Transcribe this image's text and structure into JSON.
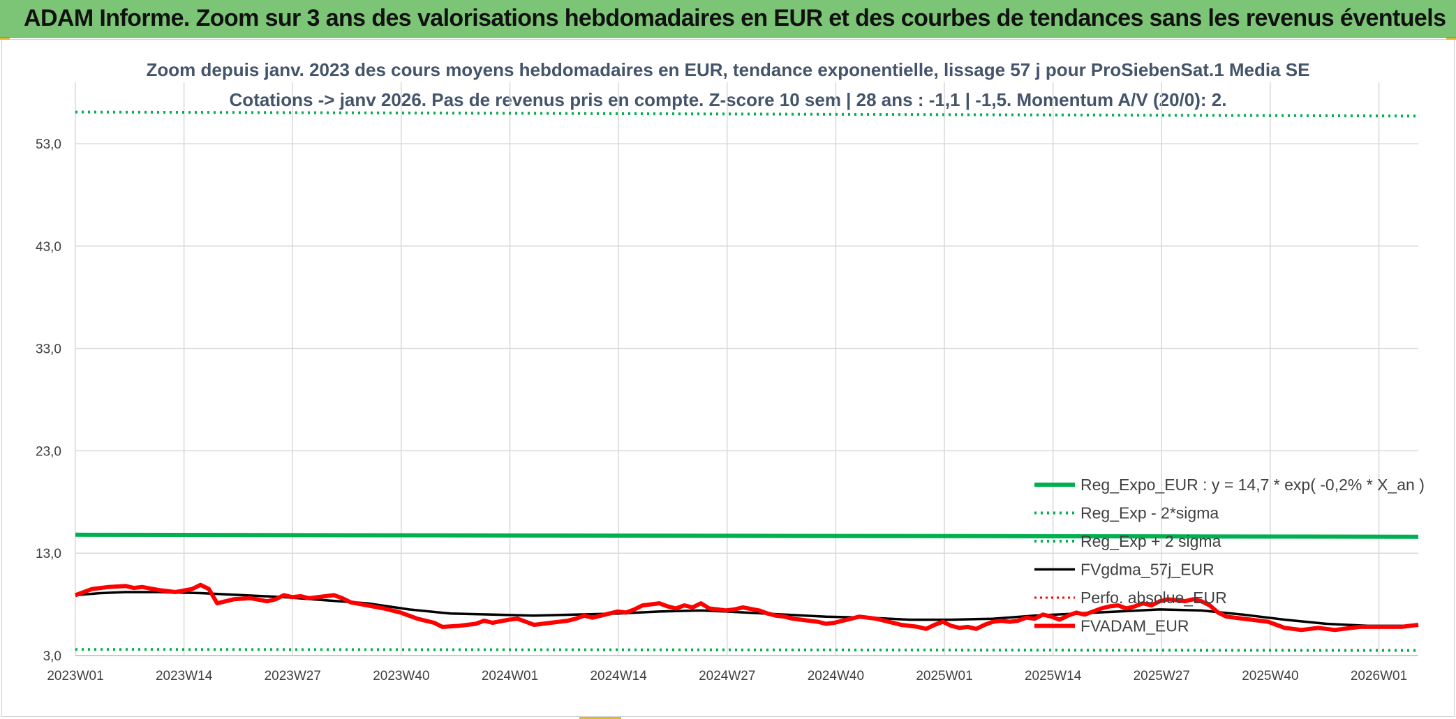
{
  "header": {
    "title": "ADAM Informe. Zoom sur 3 ans des valorisations hebdomadaires en EUR et des courbes de tendances sans les revenus éventuels"
  },
  "colors": {
    "banner": "#7cc576",
    "reg_expo": "#00b050",
    "sigma": "#00b050",
    "fvgdma": "#000000",
    "perfo": "#ff0000",
    "fvadam": "#ff0000",
    "grid": "#d9d9d9"
  },
  "chart_data": {
    "type": "line",
    "title": "Zoom depuis janv. 2023 des cours moyens hebdomadaires en EUR, tendance exponentielle, lissage 57 j pour ProSiebenSat.1 Media SE",
    "subtitle": "Cotations -> janv 2026. Pas de revenus pris en compte. Z-score 10 sem | 28 ans : -1,1 | -1,5. Momentum A/V (20/0): 2.",
    "x_tick_labels": [
      "2023W01",
      "2023W14",
      "2023W27",
      "2023W40",
      "2024W01",
      "2024W14",
      "2024W27",
      "2024W40",
      "2025W01",
      "2025W14",
      "2025W27",
      "2025W40",
      "2026W01"
    ],
    "x_range_weeks": [
      0,
      161
    ],
    "y_tick_labels": [
      "3,0",
      "13,0",
      "23,0",
      "33,0",
      "43,0",
      "53,0"
    ],
    "ylim": [
      3.0,
      59.0
    ],
    "grid": true,
    "legend_position": "right",
    "series": [
      {
        "name": "Reg_Expo_EUR : y = 14,7 * exp( -0,2% *  X_an )",
        "style": "solid-thick",
        "points": [
          [
            0,
            14.8
          ],
          [
            78,
            14.7
          ],
          [
            161,
            14.6
          ]
        ]
      },
      {
        "name": "Reg_Exp - 2*sigma",
        "style": "dotted",
        "points": [
          [
            0,
            3.6
          ],
          [
            161,
            3.5
          ]
        ]
      },
      {
        "name": "Reg_Exp + 2 sigma",
        "style": "dotted",
        "points": [
          [
            0,
            56.1
          ],
          [
            161,
            55.7
          ]
        ]
      },
      {
        "name": "FVgdma_57j_EUR",
        "style": "solid",
        "points": [
          [
            0,
            8.9
          ],
          [
            3,
            9.1
          ],
          [
            6,
            9.2
          ],
          [
            10,
            9.2
          ],
          [
            15,
            9.1
          ],
          [
            20,
            8.9
          ],
          [
            25,
            8.7
          ],
          [
            30,
            8.4
          ],
          [
            35,
            8.1
          ],
          [
            40,
            7.5
          ],
          [
            45,
            7.1
          ],
          [
            50,
            7.0
          ],
          [
            55,
            6.9
          ],
          [
            60,
            7.0
          ],
          [
            65,
            7.1
          ],
          [
            70,
            7.3
          ],
          [
            75,
            7.4
          ],
          [
            78,
            7.3
          ],
          [
            85,
            7.0
          ],
          [
            90,
            6.8
          ],
          [
            95,
            6.7
          ],
          [
            100,
            6.5
          ],
          [
            105,
            6.5
          ],
          [
            110,
            6.6
          ],
          [
            115,
            6.9
          ],
          [
            120,
            7.1
          ],
          [
            125,
            7.3
          ],
          [
            130,
            7.5
          ],
          [
            135,
            7.4
          ],
          [
            140,
            7.0
          ],
          [
            145,
            6.5
          ],
          [
            150,
            6.1
          ],
          [
            155,
            5.9
          ],
          [
            161,
            5.9
          ]
        ]
      },
      {
        "name": "Perfo. absolue_EUR",
        "style": "dotted",
        "points": []
      },
      {
        "name": "FVADAM_EUR",
        "style": "solid-thick",
        "points": [
          [
            0,
            8.9
          ],
          [
            2,
            9.5
          ],
          [
            4,
            9.7
          ],
          [
            6,
            9.8
          ],
          [
            7,
            9.6
          ],
          [
            8,
            9.7
          ],
          [
            10,
            9.4
          ],
          [
            12,
            9.2
          ],
          [
            14,
            9.5
          ],
          [
            15,
            9.9
          ],
          [
            16,
            9.5
          ],
          [
            17,
            8.1
          ],
          [
            19,
            8.5
          ],
          [
            21,
            8.6
          ],
          [
            23,
            8.3
          ],
          [
            24,
            8.5
          ],
          [
            25,
            8.9
          ],
          [
            26,
            8.7
          ],
          [
            27,
            8.8
          ],
          [
            28,
            8.6
          ],
          [
            29,
            8.7
          ],
          [
            30,
            8.8
          ],
          [
            31,
            8.9
          ],
          [
            32,
            8.6
          ],
          [
            33,
            8.2
          ],
          [
            35,
            7.9
          ],
          [
            37,
            7.6
          ],
          [
            39,
            7.2
          ],
          [
            41,
            6.6
          ],
          [
            43,
            6.2
          ],
          [
            44,
            5.8
          ],
          [
            46,
            5.9
          ],
          [
            48,
            6.1
          ],
          [
            49,
            6.4
          ],
          [
            50,
            6.2
          ],
          [
            52,
            6.5
          ],
          [
            53,
            6.6
          ],
          [
            54,
            6.3
          ],
          [
            55,
            6.0
          ],
          [
            57,
            6.2
          ],
          [
            59,
            6.4
          ],
          [
            60,
            6.6
          ],
          [
            61,
            6.9
          ],
          [
            62,
            6.7
          ],
          [
            63,
            6.9
          ],
          [
            64,
            7.1
          ],
          [
            65,
            7.3
          ],
          [
            66,
            7.2
          ],
          [
            67,
            7.5
          ],
          [
            68,
            7.9
          ],
          [
            69,
            8.0
          ],
          [
            70,
            8.1
          ],
          [
            71,
            7.8
          ],
          [
            72,
            7.6
          ],
          [
            73,
            7.9
          ],
          [
            74,
            7.7
          ],
          [
            75,
            8.1
          ],
          [
            76,
            7.6
          ],
          [
            77,
            7.5
          ],
          [
            78,
            7.4
          ],
          [
            79,
            7.5
          ],
          [
            80,
            7.7
          ],
          [
            82,
            7.4
          ],
          [
            83,
            7.1
          ],
          [
            84,
            6.9
          ],
          [
            85,
            6.8
          ],
          [
            86,
            6.6
          ],
          [
            87,
            6.5
          ],
          [
            88,
            6.4
          ],
          [
            89,
            6.3
          ],
          [
            90,
            6.1
          ],
          [
            91,
            6.2
          ],
          [
            92,
            6.4
          ],
          [
            93,
            6.6
          ],
          [
            94,
            6.8
          ],
          [
            95,
            6.7
          ],
          [
            96,
            6.6
          ],
          [
            97,
            6.4
          ],
          [
            98,
            6.2
          ],
          [
            99,
            6.0
          ],
          [
            100,
            5.9
          ],
          [
            101,
            5.8
          ],
          [
            102,
            5.6
          ],
          [
            103,
            6.0
          ],
          [
            104,
            6.3
          ],
          [
            105,
            5.9
          ],
          [
            106,
            5.7
          ],
          [
            107,
            5.8
          ],
          [
            108,
            5.6
          ],
          [
            109,
            6.0
          ],
          [
            110,
            6.3
          ],
          [
            111,
            6.4
          ],
          [
            112,
            6.3
          ],
          [
            113,
            6.4
          ],
          [
            114,
            6.7
          ],
          [
            115,
            6.6
          ],
          [
            116,
            7.0
          ],
          [
            117,
            6.8
          ],
          [
            118,
            6.5
          ],
          [
            119,
            6.9
          ],
          [
            120,
            7.2
          ],
          [
            121,
            7.0
          ],
          [
            122,
            7.3
          ],
          [
            123,
            7.6
          ],
          [
            124,
            7.8
          ],
          [
            125,
            7.9
          ],
          [
            126,
            7.6
          ],
          [
            127,
            7.8
          ],
          [
            128,
            8.1
          ],
          [
            129,
            7.9
          ],
          [
            130,
            8.3
          ],
          [
            131,
            8.5
          ],
          [
            132,
            8.4
          ],
          [
            133,
            8.3
          ],
          [
            134,
            8.5
          ],
          [
            135,
            8.3
          ],
          [
            136,
            7.9
          ],
          [
            137,
            7.2
          ],
          [
            138,
            6.8
          ],
          [
            139,
            6.7
          ],
          [
            140,
            6.6
          ],
          [
            141,
            6.5
          ],
          [
            142,
            6.4
          ],
          [
            143,
            6.3
          ],
          [
            144,
            6.0
          ],
          [
            145,
            5.7
          ],
          [
            146,
            5.6
          ],
          [
            147,
            5.5
          ],
          [
            148,
            5.6
          ],
          [
            149,
            5.7
          ],
          [
            150,
            5.6
          ],
          [
            151,
            5.5
          ],
          [
            152,
            5.6
          ],
          [
            153,
            5.7
          ],
          [
            154,
            5.8
          ],
          [
            155,
            5.8
          ],
          [
            156,
            5.8
          ],
          [
            157,
            5.8
          ],
          [
            158,
            5.8
          ],
          [
            159,
            5.8
          ],
          [
            160,
            5.9
          ],
          [
            161,
            6.0
          ]
        ]
      }
    ]
  }
}
